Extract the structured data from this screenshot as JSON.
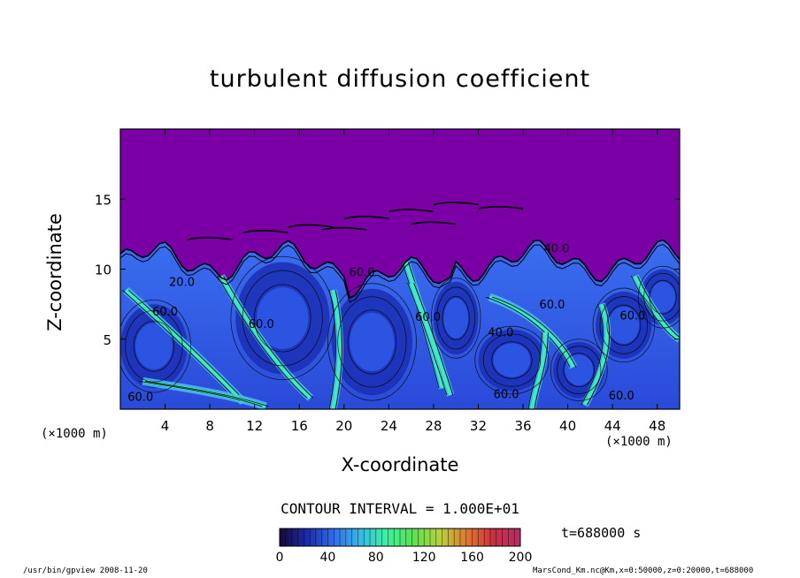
{
  "colors": {
    "background": "#ffffff",
    "field_high": "#7a00a6",
    "field_mid": "#2f5fe6",
    "field_low": "#1b2fb4",
    "field_peak": "#3cf2b4",
    "contour": "#000000",
    "colorbar_stops": [
      "#160a3a",
      "#1c2aa8",
      "#2f6be8",
      "#36b8e8",
      "#3cf0a0",
      "#5ee050",
      "#b8d040",
      "#e07830",
      "#c83040",
      "#b03068"
    ]
  },
  "chart_data": {
    "type": "heatmap",
    "title": "turbulent diffusion coefficient",
    "xlabel": "X-coordinate",
    "ylabel": "Z-coordinate",
    "x_unit_label": "(×1000 m)",
    "y_unit_label": "(×1000 m)",
    "xlim": [
      0,
      50
    ],
    "ylim": [
      0,
      20
    ],
    "xticks": [
      4,
      8,
      12,
      16,
      20,
      24,
      28,
      32,
      36,
      40,
      44,
      48
    ],
    "yticks": [
      5,
      10,
      15
    ],
    "contour_interval_text": "CONTOUR INTERVAL = 1.000E+01",
    "contour_labels": [
      {
        "text": "20.0",
        "x": 5.5,
        "z": 8.8
      },
      {
        "text": "60.0",
        "x": 4.0,
        "z": 6.7
      },
      {
        "text": "60.0",
        "x": 12.6,
        "z": 5.8
      },
      {
        "text": "60.0",
        "x": 21.6,
        "z": 9.5
      },
      {
        "text": "60.0",
        "x": 27.5,
        "z": 6.3
      },
      {
        "text": "40.0",
        "x": 34.0,
        "z": 5.2
      },
      {
        "text": "60.0",
        "x": 38.6,
        "z": 7.2
      },
      {
        "text": "40.0",
        "x": 39.0,
        "z": 11.2
      },
      {
        "text": "60.0",
        "x": 45.8,
        "z": 6.4
      },
      {
        "text": "60.0",
        "x": 34.5,
        "z": 0.8
      },
      {
        "text": "60.0",
        "x": 1.8,
        "z": 0.6
      },
      {
        "text": "60.0",
        "x": 44.8,
        "z": 0.7
      }
    ],
    "colorbar": {
      "min": 0,
      "max": 200,
      "tick_values": [
        0,
        40,
        80,
        120,
        160,
        200
      ]
    },
    "time_text": "t=688000 s"
  },
  "footer": {
    "left_text": "/usr/bin/gpview  2008-11-20",
    "right_text": "MarsCond_Km.nc@Km,x=0:50000,z=0:20000,t=688000"
  }
}
